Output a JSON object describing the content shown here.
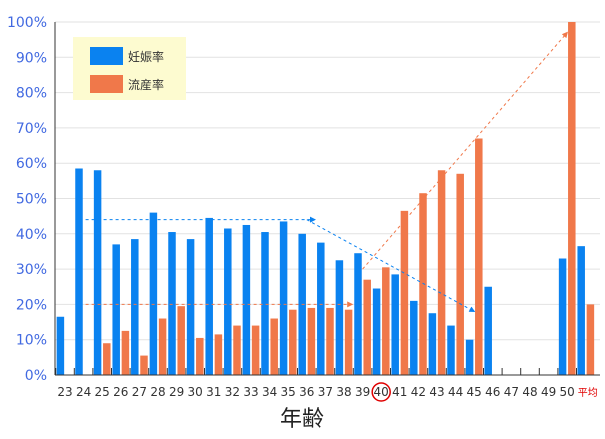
{
  "chart_data": {
    "type": "bar",
    "xlabel": "年齢",
    "ylim": [
      0,
      100
    ],
    "y_ticks": [
      "0%",
      "10%",
      "20%",
      "30%",
      "40%",
      "50%",
      "60%",
      "70%",
      "80%",
      "90%",
      "100%"
    ],
    "categories": [
      "23",
      "24",
      "25",
      "26",
      "27",
      "28",
      "29",
      "30",
      "31",
      "32",
      "33",
      "34",
      "35",
      "36",
      "37",
      "38",
      "39",
      "40",
      "41",
      "42",
      "43",
      "44",
      "45",
      "46",
      "47",
      "48",
      "49",
      "50",
      "平均"
    ],
    "highlighted_category": "40",
    "series": [
      {
        "name": "妊娠率",
        "color": "#0a82f0",
        "values": [
          16.5,
          58.5,
          58,
          37,
          38.5,
          46,
          40.5,
          38.5,
          44.5,
          41.5,
          42.5,
          40.5,
          43.5,
          40,
          37.5,
          32.5,
          34.5,
          24.5,
          28.5,
          21,
          17.5,
          14,
          10,
          25,
          null,
          null,
          null,
          33,
          36.5
        ]
      },
      {
        "name": "流産率",
        "color": "#f0784a",
        "values": [
          null,
          null,
          9,
          12.5,
          5.5,
          16,
          19.5,
          10.5,
          11.5,
          14,
          14,
          16,
          18.5,
          19,
          19,
          18.5,
          27,
          30.5,
          46.5,
          51.5,
          58,
          57,
          67,
          null,
          null,
          null,
          null,
          100,
          20
        ]
      }
    ],
    "trend_annotations": [
      {
        "series": "妊娠率",
        "from": [
          "24",
          44
        ],
        "to": [
          "36",
          44
        ]
      },
      {
        "series": "妊娠率",
        "from": [
          "36",
          44
        ],
        "to": [
          "45",
          18
        ]
      },
      {
        "series": "流産率",
        "from": [
          "24",
          20
        ],
        "to": [
          "38",
          20
        ]
      },
      {
        "series": "流産率",
        "from": [
          "39",
          30
        ],
        "to": [
          "50",
          97
        ]
      }
    ],
    "legend_position": "top-left",
    "grid": true
  }
}
